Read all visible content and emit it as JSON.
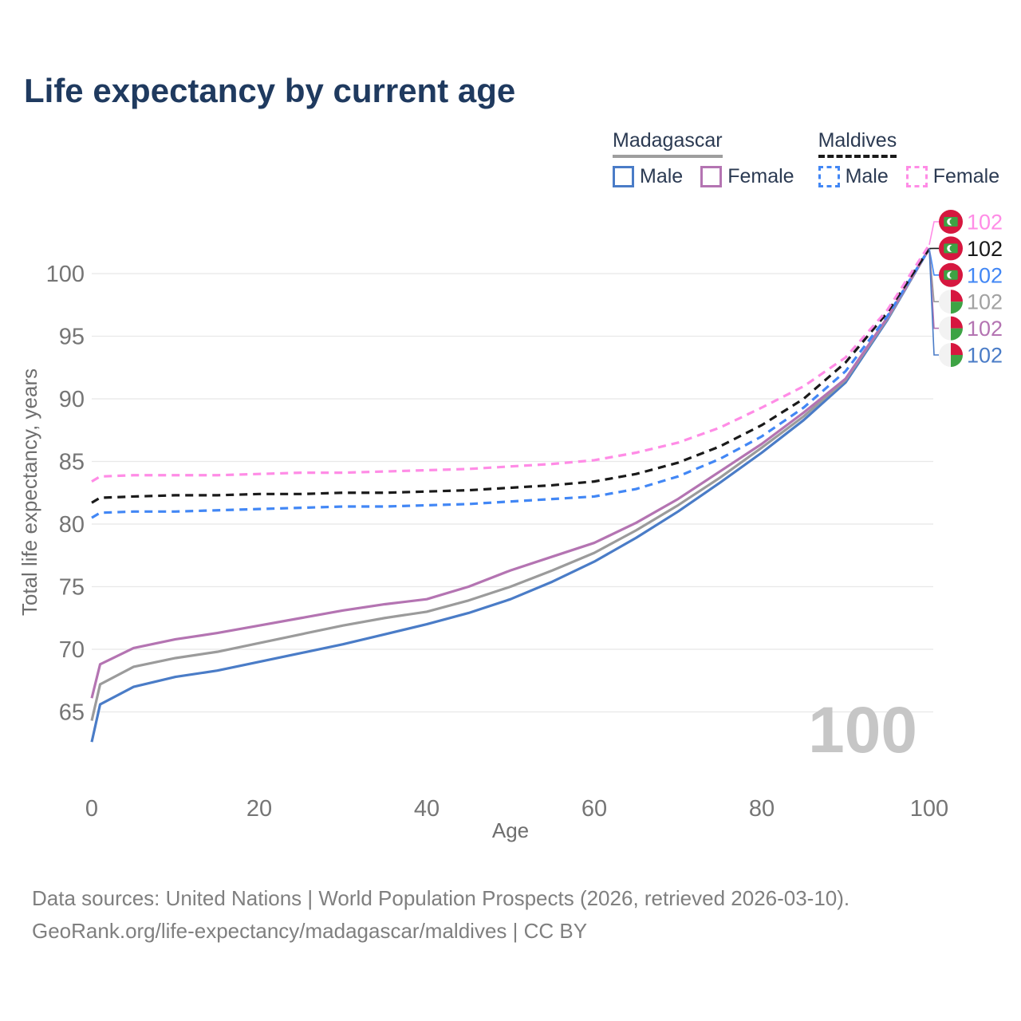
{
  "title": "Life expectancy by current age",
  "colors": {
    "title": "#1f3a5f",
    "legend_text": "#2b3a52",
    "tick_label": "#757575",
    "axis_title": "#6e6e6e",
    "gridline": "#e8e8e8",
    "watermark": "#c6c6c6",
    "flag_red": "#d6173f",
    "flag_green": "#3da344",
    "flag_white": "#f2f2f2"
  },
  "legend": {
    "groups": [
      {
        "name": "Madagascar",
        "line_style": "solid",
        "underline_color": "#9e9e9e",
        "items": [
          {
            "label": "Male",
            "color": "#4a7cc7"
          },
          {
            "label": "Female",
            "color": "#b474b2"
          }
        ]
      },
      {
        "name": "Maldives",
        "line_style": "dashed",
        "underline_color": "#1a1a1a",
        "items": [
          {
            "label": "Male",
            "color": "#4287f5"
          },
          {
            "label": "Female",
            "color": "#ff8ce6"
          }
        ]
      }
    ]
  },
  "chart_data": {
    "type": "line",
    "title": "Life expectancy by current age",
    "xlabel": "Age",
    "ylabel": "Total life expectancy, years",
    "xlim": [
      0,
      100
    ],
    "ylim": [
      62,
      103
    ],
    "x_ticks": [
      0,
      20,
      40,
      60,
      80,
      100
    ],
    "y_ticks": [
      65,
      70,
      75,
      80,
      85,
      90,
      95,
      100
    ],
    "grid": "horizontal",
    "legend_position": "top-right",
    "age_counter": "100",
    "ages": [
      0,
      1,
      5,
      10,
      15,
      20,
      25,
      30,
      35,
      40,
      45,
      50,
      55,
      60,
      65,
      70,
      75,
      80,
      85,
      90,
      95,
      100
    ],
    "series": [
      {
        "id": "madagascar-male",
        "name": "Madagascar Male",
        "country": "Madagascar",
        "sex": "Male",
        "color": "#4a7cc7",
        "dash": false,
        "flag": "madagascar",
        "end_label": "102",
        "label_color": "#4a7cc7",
        "values": [
          62.6,
          65.6,
          67.0,
          67.8,
          68.3,
          69.0,
          69.7,
          70.4,
          71.2,
          72.0,
          72.9,
          74.0,
          75.4,
          77.0,
          78.9,
          81.0,
          83.3,
          85.7,
          88.3,
          91.3,
          96.3,
          102.0
        ]
      },
      {
        "id": "madagascar-all",
        "name": "Madagascar",
        "country": "Madagascar",
        "sex": "All",
        "color": "#9b9b9b",
        "dash": false,
        "flag": "madagascar",
        "end_label": "102",
        "label_color": "#a2a2a2",
        "values": [
          64.3,
          67.2,
          68.6,
          69.3,
          69.8,
          70.5,
          71.2,
          71.9,
          72.5,
          73.0,
          73.9,
          75.0,
          76.3,
          77.7,
          79.5,
          81.5,
          83.7,
          86.1,
          88.6,
          91.5,
          96.4,
          102.0
        ]
      },
      {
        "id": "madagascar-female",
        "name": "Madagascar Female",
        "country": "Madagascar",
        "sex": "Female",
        "color": "#b474b2",
        "dash": false,
        "flag": "madagascar",
        "end_label": "102",
        "label_color": "#b474b2",
        "values": [
          66.1,
          68.8,
          70.1,
          70.8,
          71.3,
          71.9,
          72.5,
          73.1,
          73.6,
          74.0,
          75.0,
          76.3,
          77.4,
          78.5,
          80.1,
          82.0,
          84.2,
          86.4,
          88.9,
          91.6,
          96.5,
          102.0
        ]
      },
      {
        "id": "maldives-male",
        "name": "Maldives Male",
        "country": "Maldives",
        "sex": "Male",
        "color": "#4287f5",
        "dash": true,
        "flag": "maldives",
        "end_label": "102",
        "label_color": "#4287f5",
        "values": [
          80.5,
          80.9,
          81.0,
          81.0,
          81.1,
          81.2,
          81.3,
          81.4,
          81.4,
          81.5,
          81.6,
          81.8,
          82.0,
          82.2,
          82.8,
          83.8,
          85.2,
          87.0,
          89.3,
          92.2,
          96.6,
          102.0
        ]
      },
      {
        "id": "maldives-all",
        "name": "Maldives",
        "country": "Maldives",
        "sex": "All",
        "color": "#1a1a1a",
        "dash": true,
        "flag": "maldives",
        "end_label": "102",
        "label_color": "#1a1a1a",
        "values": [
          81.7,
          82.1,
          82.2,
          82.3,
          82.3,
          82.4,
          82.4,
          82.5,
          82.5,
          82.6,
          82.7,
          82.9,
          83.1,
          83.4,
          84.0,
          84.9,
          86.2,
          87.9,
          90.0,
          92.9,
          96.9,
          102.0
        ]
      },
      {
        "id": "maldives-female",
        "name": "Maldives Female",
        "country": "Maldives",
        "sex": "Female",
        "color": "#ff8ce6",
        "dash": true,
        "flag": "maldives",
        "end_label": "102",
        "label_color": "#ff8ce6",
        "values": [
          83.4,
          83.8,
          83.9,
          83.9,
          83.9,
          84.0,
          84.1,
          84.1,
          84.2,
          84.3,
          84.4,
          84.6,
          84.8,
          85.1,
          85.7,
          86.5,
          87.7,
          89.3,
          91.0,
          93.3,
          97.1,
          102.3
        ]
      }
    ],
    "end_label_order": [
      "maldives-female",
      "maldives-all",
      "maldives-male",
      "madagascar-all",
      "madagascar-female",
      "madagascar-male"
    ]
  },
  "footer": {
    "line1": "Data sources: United Nations | World Population Prospects (2026, retrieved 2026-03-10).",
    "line2": "GeoRank.org/life-expectancy/madagascar/maldives | CC BY"
  }
}
